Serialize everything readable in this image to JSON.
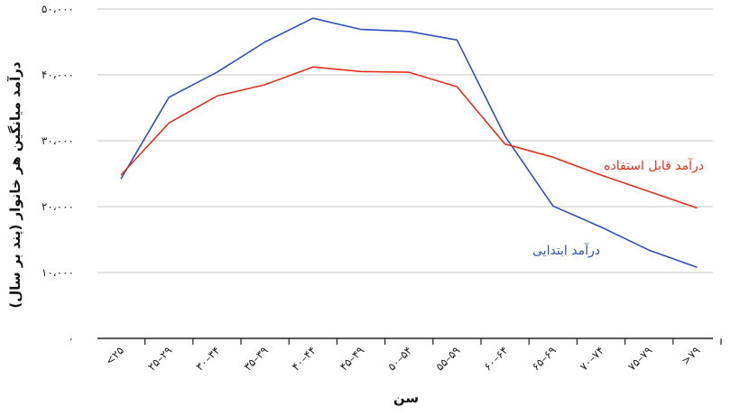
{
  "chart_data": {
    "type": "line",
    "title": "",
    "xlabel": "سن",
    "ylabel": "درآمد میانگین هر خانوار (پند بر سال)",
    "categories": [
      "<۲۵",
      "۲۵–۲۹",
      "۳۰–۳۴",
      "۳۵–۳۹",
      "۴۰–۴۴",
      "۴۵–۴۹",
      "۵۰–۵۴",
      "۵۵–۵۹",
      "۶۰–۶۴",
      "۶۵–۶۹",
      "۷۰–۷۴",
      "۷۵–۷۹",
      ">۷۹"
    ],
    "ylim": [
      0,
      50000
    ],
    "yticks": [
      0,
      10000,
      20000,
      30000,
      40000,
      50000
    ],
    "ytick_labels": [
      "۰",
      "۱۰،۰۰۰",
      "۲۰،۰۰۰",
      "۳۰،۰۰۰",
      "۴۰،۰۰۰",
      "۵۰،۰۰۰"
    ],
    "grid": true,
    "series": [
      {
        "name": "درآمد ابتدایی",
        "color": "#3050b8",
        "values": [
          24200,
          36600,
          40400,
          45000,
          48600,
          46900,
          46600,
          45300,
          30700,
          20100,
          16900,
          13400,
          10800
        ]
      },
      {
        "name": "درآمد قابل استفاده",
        "color": "#e0301e",
        "values": [
          24800,
          32700,
          36800,
          38500,
          41200,
          40500,
          40400,
          38200,
          29500,
          27500,
          24800,
          22300,
          19800
        ]
      }
    ]
  }
}
